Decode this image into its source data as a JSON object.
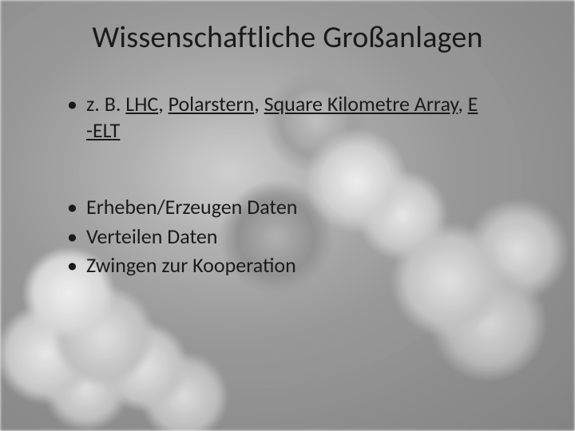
{
  "title": "Wissenschaftliche Großanlagen",
  "title_fontsize": 38,
  "title_color": "#1a1a1a",
  "body_fontsize": 26,
  "body_color": "#1a1a1a",
  "link_color": "#1a1a1a",
  "bullet1": {
    "prefix": "z. B. ",
    "links": [
      "LHC",
      "Polarstern",
      "Square Kilometre Array"
    ],
    "link_wrap_a": "E",
    "link_wrap_b": "-ELT",
    "sep": ", "
  },
  "bullets2": [
    "Erheben/Erzeugen Daten",
    "Verteilen Daten",
    "Zwingen zur Kooperation"
  ]
}
